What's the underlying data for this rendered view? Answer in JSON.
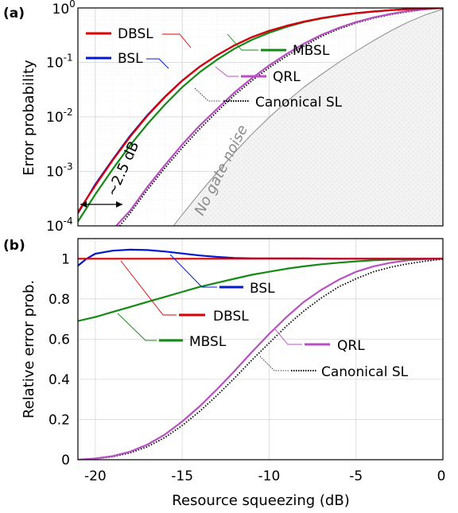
{
  "chart_data": [
    {
      "panel_label": "(a)",
      "type": "line",
      "ylabel": "Error probability",
      "yscale": "log",
      "ylim": [
        0.0001,
        1
      ],
      "xlim": [
        -21,
        0
      ],
      "y_ticks": [
        {
          "base": "10",
          "exp": "0"
        },
        {
          "base": "10",
          "exp": "-1"
        },
        {
          "base": "10",
          "exp": "-2"
        },
        {
          "base": "10",
          "exp": "-3"
        },
        {
          "base": "10",
          "exp": "-4"
        }
      ],
      "grid": true,
      "series": [
        {
          "name": "DBSL",
          "color": "#e00000",
          "style": "solid",
          "x": [
            -21,
            -20,
            -19,
            -18,
            -17,
            -16,
            -15,
            -14,
            -13,
            -12,
            -11,
            -10,
            -9,
            -8,
            -7,
            -6,
            -5,
            -4,
            -3,
            -2,
            -1,
            0
          ],
          "y": [
            0.00018,
            0.00055,
            0.0016,
            0.0043,
            0.0105,
            0.023,
            0.046,
            0.083,
            0.135,
            0.205,
            0.29,
            0.38,
            0.47,
            0.56,
            0.65,
            0.73,
            0.8,
            0.86,
            0.91,
            0.95,
            0.98,
            1.0
          ]
        },
        {
          "name": "BSL",
          "color": "#0018d0",
          "style": "solid",
          "x": [
            -21,
            -20,
            -19,
            -18,
            -17,
            -16,
            -15,
            -14,
            -13,
            -12,
            -11,
            -10,
            -9,
            -8,
            -7,
            -6,
            -5,
            -4,
            -3,
            -2,
            -1,
            0
          ],
          "y": [
            0.00017,
            0.00058,
            0.00165,
            0.0045,
            0.0108,
            0.0234,
            0.0465,
            0.0835,
            0.1355,
            0.2052,
            0.29,
            0.38,
            0.47,
            0.56,
            0.65,
            0.73,
            0.8,
            0.86,
            0.91,
            0.95,
            0.98,
            1.0
          ]
        },
        {
          "name": "MBSL",
          "color": "#138a13",
          "style": "solid",
          "x": [
            -21,
            -20,
            -19,
            -18,
            -17,
            -16,
            -15,
            -14,
            -13,
            -12,
            -11,
            -10,
            -9,
            -8,
            -7,
            -6,
            -5,
            -4,
            -3,
            -2,
            -1,
            0
          ],
          "y": [
            0.00012,
            0.00038,
            0.0011,
            0.003,
            0.0074,
            0.0168,
            0.035,
            0.066,
            0.112,
            0.178,
            0.26,
            0.35,
            0.45,
            0.55,
            0.64,
            0.72,
            0.8,
            0.86,
            0.91,
            0.95,
            0.98,
            1.0
          ]
        },
        {
          "name": "QRL",
          "color": "#b84fc4",
          "style": "solid",
          "x": [
            -18.8,
            -18,
            -17,
            -16,
            -15,
            -14,
            -13,
            -12,
            -11,
            -10,
            -9,
            -8,
            -7,
            -6,
            -5,
            -4,
            -3,
            -2,
            -1,
            0
          ],
          "y": [
            0.0001,
            0.00019,
            0.00052,
            0.0013,
            0.0031,
            0.0069,
            0.014,
            0.028,
            0.051,
            0.088,
            0.143,
            0.22,
            0.32,
            0.43,
            0.55,
            0.67,
            0.78,
            0.88,
            0.95,
            1.0
          ]
        },
        {
          "name": "Canonical SL",
          "color": "#000000",
          "style": "dotted",
          "x": [
            -18.6,
            -18,
            -17,
            -16,
            -15,
            -14,
            -13,
            -12,
            -11,
            -10,
            -9,
            -8,
            -7,
            -6,
            -5,
            -4,
            -3,
            -2,
            -1,
            0
          ],
          "y": [
            0.0001,
            0.00017,
            0.00046,
            0.00115,
            0.0027,
            0.006,
            0.0125,
            0.025,
            0.046,
            0.08,
            0.13,
            0.2,
            0.3,
            0.41,
            0.53,
            0.65,
            0.76,
            0.86,
            0.94,
            1.0
          ]
        },
        {
          "name": "No gate noise",
          "color": "#8a8a8a",
          "style": "thin",
          "x": [
            -15.5,
            -15,
            -14,
            -13,
            -12,
            -11,
            -10,
            -9,
            -8,
            -7,
            -6,
            -5,
            -4,
            -3,
            -2,
            -1,
            0
          ],
          "y": [
            0.0001,
            0.00016,
            0.0004,
            0.00095,
            0.0022,
            0.0048,
            0.0098,
            0.019,
            0.035,
            0.06,
            0.1,
            0.16,
            0.25,
            0.38,
            0.55,
            0.75,
            0.95
          ]
        }
      ],
      "annotations": [
        "~2.5 dB",
        "No gate noise"
      ]
    },
    {
      "panel_label": "(b)",
      "type": "line",
      "xlabel": "Resource squeezing (dB)",
      "ylabel": "Relative error prob.",
      "xlim": [
        -21,
        0
      ],
      "ylim": [
        0,
        1.1
      ],
      "x_ticks": [
        "-20",
        "-15",
        "-10",
        "-5",
        "0"
      ],
      "x_tick_values": [
        -20,
        -15,
        -10,
        -5,
        0
      ],
      "y_ticks": [
        "0",
        "0.2",
        "0.4",
        "0.6",
        "0.8",
        "1"
      ],
      "y_tick_values": [
        0,
        0.2,
        0.4,
        0.6,
        0.8,
        1
      ],
      "grid": true,
      "series": [
        {
          "name": "DBSL",
          "color": "#e00000",
          "style": "solid",
          "x": [
            -21,
            0
          ],
          "y": [
            1.0,
            1.0
          ]
        },
        {
          "name": "BSL",
          "color": "#0018d0",
          "style": "solid",
          "x": [
            -21,
            -20.5,
            -20,
            -19,
            -18,
            -17,
            -16,
            -15,
            -14,
            -13,
            -12,
            -11,
            -10,
            -8,
            -6,
            -4,
            -2,
            0
          ],
          "y": [
            0.965,
            1.0,
            1.025,
            1.04,
            1.045,
            1.043,
            1.036,
            1.026,
            1.016,
            1.009,
            1.004,
            1.002,
            1.002,
            1.002,
            1.0,
            1.0,
            1.0,
            1.0
          ]
        },
        {
          "name": "MBSL",
          "color": "#138a13",
          "style": "solid",
          "x": [
            -21,
            -20,
            -19,
            -18,
            -17,
            -16,
            -15,
            -14,
            -13,
            -12,
            -11,
            -10,
            -9,
            -8,
            -7,
            -6,
            -5,
            -4,
            -3,
            -2,
            -1,
            0
          ],
          "y": [
            0.69,
            0.71,
            0.735,
            0.76,
            0.785,
            0.81,
            0.835,
            0.86,
            0.88,
            0.9,
            0.92,
            0.935,
            0.95,
            0.962,
            0.972,
            0.98,
            0.987,
            0.992,
            0.996,
            0.998,
            0.999,
            1.0
          ]
        },
        {
          "name": "QRL",
          "color": "#b84fc4",
          "style": "solid",
          "x": [
            -21,
            -20,
            -19,
            -18,
            -17,
            -16,
            -15,
            -14,
            -13,
            -12,
            -11,
            -10,
            -9,
            -8,
            -7,
            -6,
            -5,
            -4,
            -3,
            -2,
            -1,
            0
          ],
          "y": [
            0.0,
            0.006,
            0.018,
            0.04,
            0.075,
            0.125,
            0.19,
            0.265,
            0.35,
            0.44,
            0.535,
            0.625,
            0.71,
            0.785,
            0.845,
            0.895,
            0.935,
            0.962,
            0.98,
            0.992,
            0.998,
            1.0
          ]
        },
        {
          "name": "Canonical SL",
          "color": "#000000",
          "style": "dotted",
          "x": [
            -21,
            -20,
            -19,
            -18,
            -17,
            -16,
            -15,
            -14,
            -13,
            -12,
            -11,
            -10,
            -9,
            -8,
            -7,
            -6,
            -5,
            -4,
            -3,
            -2,
            -1,
            0
          ],
          "y": [
            0.0,
            0.005,
            0.015,
            0.034,
            0.065,
            0.11,
            0.17,
            0.24,
            0.32,
            0.405,
            0.495,
            0.58,
            0.665,
            0.74,
            0.805,
            0.86,
            0.9,
            0.935,
            0.958,
            0.975,
            0.988,
            0.998
          ]
        }
      ]
    }
  ]
}
